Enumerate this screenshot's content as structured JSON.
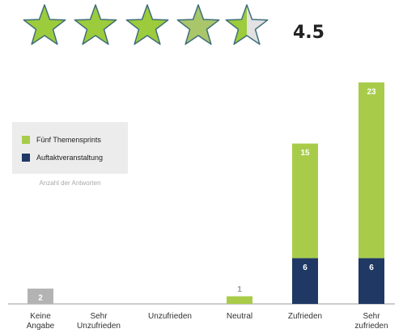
{
  "rating": 4.5,
  "chart_data": {
    "type": "stacked_bar",
    "categories": [
      "Keine Angabe",
      "Sehr Unzufrieden",
      "Unzufrieden",
      "Neutral",
      "Zufrieden",
      "Sehr zufrieden"
    ],
    "series": [
      {
        "name": "Fünf Themensprints",
        "color": "#a8cc4a",
        "point_colors": [
          "#b3b3b3",
          "#a8cc4a",
          "#a8cc4a",
          "#a8cc4a",
          "#a8cc4a",
          "#a8cc4a"
        ],
        "values": [
          2,
          0,
          0,
          1,
          15,
          23
        ]
      },
      {
        "name": "Auftaktveranstaltung",
        "color": "#1f3864",
        "values": [
          0,
          0,
          0,
          0,
          6,
          6
        ]
      }
    ],
    "y_label": "Anzahl der Antworten",
    "ylim": [
      0,
      29
    ]
  }
}
